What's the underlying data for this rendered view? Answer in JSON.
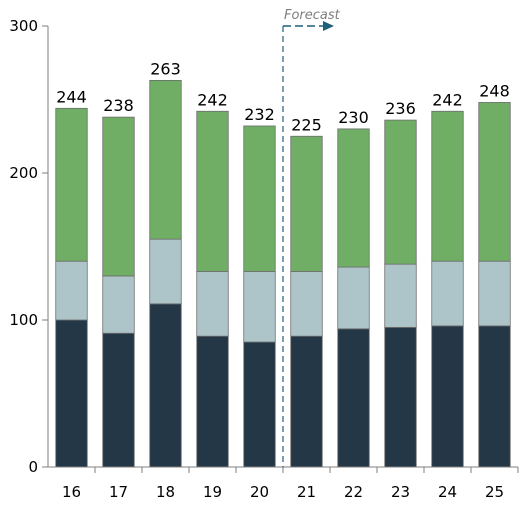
{
  "chart_data": {
    "type": "bar",
    "stacked": true,
    "categories": [
      "16",
      "17",
      "18",
      "19",
      "20",
      "21",
      "22",
      "23",
      "24",
      "25"
    ],
    "series": [
      {
        "values": [
          100,
          91,
          111,
          89,
          85,
          89,
          94,
          95,
          96,
          96
        ],
        "color": "#243746"
      },
      {
        "values": [
          40,
          39,
          44,
          44,
          48,
          44,
          42,
          43,
          44,
          44
        ],
        "color": "#adc5c9"
      },
      {
        "values": [
          104,
          108,
          108,
          109,
          99,
          92,
          94,
          98,
          102,
          108
        ],
        "color": "#6fae64"
      }
    ],
    "totals": [
      "244",
      "238",
      "263",
      "242",
      "232",
      "225",
      "230",
      "236",
      "242",
      "248"
    ],
    "yticks": [
      "0",
      "100",
      "200",
      "300"
    ],
    "ylim": [
      0,
      300
    ],
    "annotation": {
      "text": "Forecast",
      "after_category": "20",
      "color": "#1f5f7a"
    },
    "grid": false,
    "legend": "none"
  }
}
